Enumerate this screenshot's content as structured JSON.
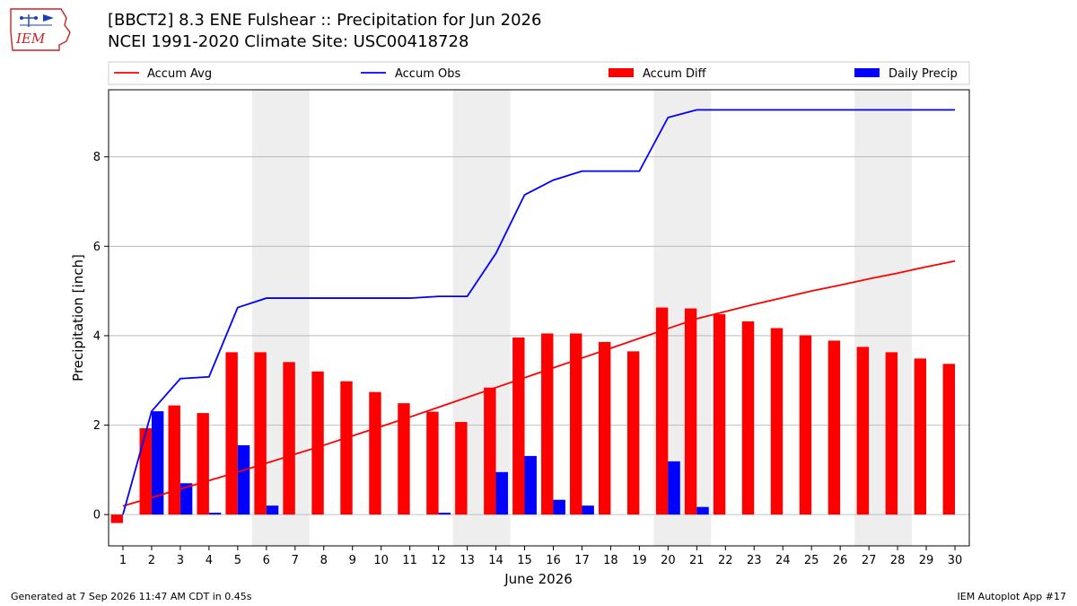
{
  "header": {
    "title_line1": "[BBCT2] 8.3 ENE Fulshear :: Precipitation for Jun 2026",
    "title_line2": "NCEI 1991-2020 Climate Site: USC00418728",
    "logo_text": "IEM"
  },
  "footer": {
    "generated": "Generated at 7 Sep 2026 11:47 AM CDT in 0.45s",
    "app": "IEM Autoplot App #17"
  },
  "colors": {
    "accum_avg": "#ff0000",
    "accum_obs": "#0000ff",
    "accum_diff": "#ff0000",
    "daily_precip": "#0000ff",
    "weekend_shade": "#eeeeee",
    "grid": "#b0b0b0"
  },
  "chart_data": {
    "type": "bar",
    "xlabel": "June 2026",
    "ylabel": "Precipitation [inch]",
    "xlim": [
      0.5,
      30.5
    ],
    "ylim": [
      -0.7,
      9.5
    ],
    "yticks": [
      0,
      2,
      4,
      6,
      8
    ],
    "grid": "horizontal",
    "legend_placement": "top, above plot",
    "weekends": [
      [
        6,
        7
      ],
      [
        13,
        14
      ],
      [
        20,
        21
      ],
      [
        27,
        28
      ]
    ],
    "days": [
      1,
      2,
      3,
      4,
      5,
      6,
      7,
      8,
      9,
      10,
      11,
      12,
      13,
      14,
      15,
      16,
      17,
      18,
      19,
      20,
      21,
      22,
      23,
      24,
      25,
      26,
      27,
      28,
      29,
      30
    ],
    "series": [
      {
        "name": "Accum Avg",
        "type": "line",
        "values": [
          0.19,
          0.38,
          0.57,
          0.76,
          0.95,
          1.15,
          1.35,
          1.55,
          1.76,
          1.97,
          2.18,
          2.4,
          2.62,
          2.84,
          3.06,
          3.28,
          3.5,
          3.72,
          3.94,
          4.16,
          4.38,
          4.54,
          4.7,
          4.85,
          5.0,
          5.13,
          5.27,
          5.4,
          5.54,
          5.67
        ]
      },
      {
        "name": "Accum Obs",
        "type": "line",
        "values": [
          0.0,
          2.31,
          3.04,
          3.08,
          4.63,
          4.84,
          4.84,
          4.84,
          4.84,
          4.84,
          4.84,
          4.88,
          4.88,
          5.84,
          7.15,
          7.48,
          7.68,
          7.68,
          7.68,
          8.88,
          9.05,
          9.05,
          9.05,
          9.05,
          9.05,
          9.05,
          9.05,
          9.05,
          9.05,
          9.05
        ]
      },
      {
        "name": "Accum Diff",
        "type": "bar",
        "values": [
          -0.19,
          1.93,
          2.44,
          2.27,
          3.63,
          3.63,
          3.41,
          3.2,
          2.98,
          2.74,
          2.49,
          2.3,
          2.07,
          2.84,
          3.96,
          4.05,
          4.05,
          3.86,
          3.65,
          4.63,
          4.61,
          4.48,
          4.32,
          4.17,
          4.01,
          3.89,
          3.75,
          3.63,
          3.49,
          3.37
        ]
      },
      {
        "name": "Daily Precip",
        "type": "bar",
        "values": [
          0.0,
          2.31,
          0.7,
          0.04,
          1.55,
          0.2,
          0.0,
          0.0,
          0.0,
          0.0,
          0.0,
          0.04,
          0.0,
          0.95,
          1.31,
          0.33,
          0.2,
          0.0,
          0.0,
          1.19,
          0.17,
          0.0,
          0.0,
          0.0,
          0.0,
          0.0,
          0.0,
          0.0,
          0.0,
          0.0
        ]
      }
    ]
  }
}
